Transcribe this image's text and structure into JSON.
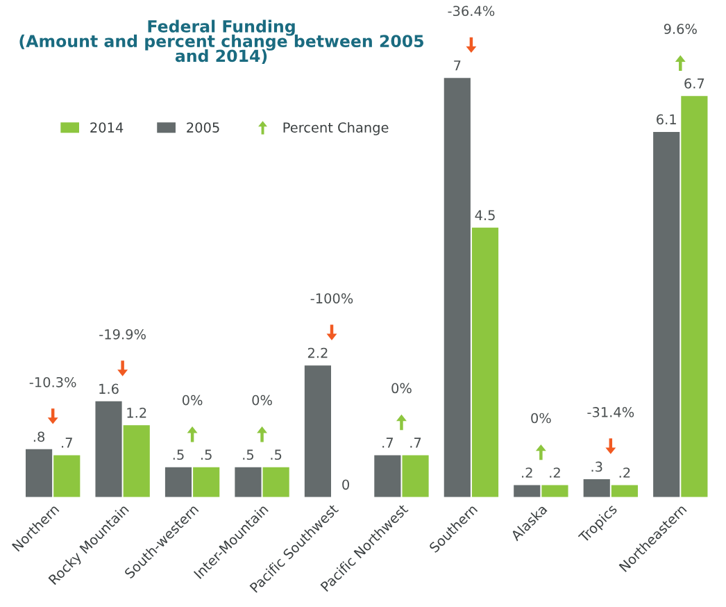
{
  "chart_data": {
    "type": "bar",
    "title": "Federal Funding\n(Amount and percent change between 2005\nand 2014)",
    "categories": [
      "Northern",
      "Rocky Mountain",
      "South-western",
      "Inter-Mountain",
      "Pacific Southwest",
      "Pacific Northwest",
      "Southern",
      "Alaska",
      "Tropics",
      "Northeastern"
    ],
    "series": [
      {
        "name": "2005",
        "color": "#646b6c",
        "values": [
          0.8,
          1.6,
          0.5,
          0.5,
          2.2,
          0.7,
          7,
          0.2,
          0.3,
          6.1
        ],
        "value_labels": [
          ".8",
          "1.6",
          ".5",
          ".5",
          "2.2",
          ".7",
          "7",
          ".2",
          ".3",
          "6.1"
        ]
      },
      {
        "name": "2014",
        "color": "#8dc63f",
        "values": [
          0.7,
          1.2,
          0.5,
          0.5,
          0,
          0.7,
          4.5,
          0.2,
          0.2,
          6.7
        ],
        "value_labels": [
          ".7",
          "1.2",
          ".5",
          ".5",
          "0",
          ".7",
          "4.5",
          ".2",
          ".2",
          "6.7"
        ]
      }
    ],
    "annotations": [
      "Percent Change",
      "-10.3%",
      "-19.9%",
      "0%",
      "0%",
      "-100%",
      "0%",
      "-36.4%",
      "0%",
      "-31.4%",
      "9.6%"
    ],
    "legend": "top left"
  }
}
